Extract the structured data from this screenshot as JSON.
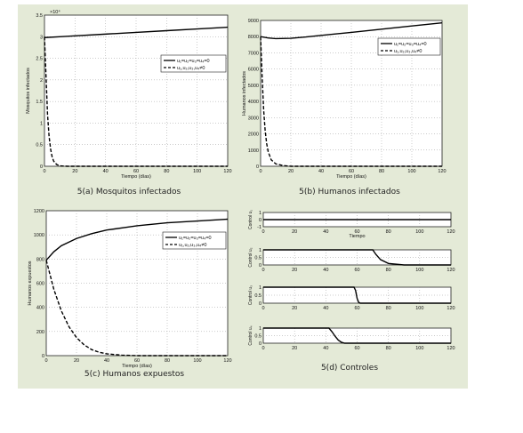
{
  "chart_data": [
    {
      "type": "line",
      "caption": "5(a) Mosquitos infectados",
      "xlabel": "Tiempo (días)",
      "ylabel": "Mosquitos infectados",
      "y_multiplier": "×10⁴",
      "xlim": [
        0,
        120
      ],
      "ylim": [
        0,
        3.5
      ],
      "xticks": [
        0,
        20,
        40,
        60,
        80,
        100,
        120
      ],
      "yticks": [
        0,
        0.5,
        1,
        1.5,
        2,
        2.5,
        3,
        3.5
      ],
      "ytick_labels": [
        "0",
        "0.5",
        "1",
        "1.5",
        "2",
        "2.5",
        "3",
        "3.5"
      ],
      "grid": true,
      "legend_position": "top-right",
      "series": [
        {
          "name": "u₁=u₂=u₃=u₄=0",
          "style": "solid",
          "x": [
            0,
            10,
            20,
            40,
            60,
            80,
            100,
            120
          ],
          "y": [
            2.98,
            3.0,
            3.02,
            3.06,
            3.1,
            3.14,
            3.18,
            3.22
          ]
        },
        {
          "name": "u₁,u₂,u₃,u₄≠0",
          "style": "dashed",
          "x": [
            0,
            1,
            2,
            3,
            4,
            5,
            6,
            8,
            10,
            15,
            120
          ],
          "y": [
            3.0,
            2.1,
            1.2,
            0.7,
            0.4,
            0.22,
            0.12,
            0.04,
            0.01,
            0,
            0
          ]
        }
      ]
    },
    {
      "type": "line",
      "caption": "5(b) Humanos infectados",
      "xlabel": "Tiempo (días)",
      "ylabel": "Humanos infectados",
      "xlim": [
        0,
        120
      ],
      "ylim": [
        0,
        9000
      ],
      "xticks": [
        0,
        20,
        40,
        60,
        80,
        100,
        120
      ],
      "yticks": [
        0,
        1000,
        2000,
        3000,
        4000,
        5000,
        6000,
        7000,
        8000,
        9000
      ],
      "ytick_labels": [
        "0",
        "1000",
        "2000",
        "3000",
        "4000",
        "5000",
        "6000",
        "7000",
        "8000",
        "9000"
      ],
      "grid": true,
      "legend_position": "top-right",
      "series": [
        {
          "name": "u₁=u₂=u₃=u₄=0",
          "style": "solid",
          "x": [
            0,
            5,
            10,
            20,
            30,
            40,
            60,
            80,
            100,
            120
          ],
          "y": [
            8000,
            7920,
            7880,
            7900,
            7980,
            8080,
            8260,
            8460,
            8660,
            8850
          ]
        },
        {
          "name": "u₁,u₂,u₃,u₄≠0",
          "style": "dashed",
          "x": [
            0,
            1,
            2,
            3,
            4,
            5,
            7,
            10,
            15,
            20,
            120
          ],
          "y": [
            8000,
            5500,
            3500,
            2200,
            1400,
            900,
            400,
            150,
            40,
            0,
            0
          ]
        }
      ]
    },
    {
      "type": "line",
      "caption": "5(c) Humanos expuestos",
      "xlabel": "Tiempo (días)",
      "ylabel": "Humanos expuestos",
      "xlim": [
        0,
        120
      ],
      "ylim": [
        0,
        1200
      ],
      "xticks": [
        0,
        20,
        40,
        60,
        80,
        100,
        120
      ],
      "yticks": [
        0,
        200,
        400,
        600,
        800,
        1000,
        1200
      ],
      "ytick_labels": [
        "0",
        "200",
        "400",
        "600",
        "800",
        "1000",
        "1200"
      ],
      "grid": true,
      "legend_position": "top-right",
      "series": [
        {
          "name": "u₁=u₂=u₃=u₄=0",
          "style": "solid",
          "x": [
            0,
            5,
            10,
            20,
            30,
            40,
            60,
            80,
            100,
            120
          ],
          "y": [
            790,
            860,
            910,
            970,
            1010,
            1040,
            1075,
            1100,
            1115,
            1130
          ]
        },
        {
          "name": "u₁,u₂,u₃,u₄≠0",
          "style": "dashed",
          "x": [
            0,
            5,
            10,
            15,
            20,
            25,
            30,
            35,
            40,
            50,
            60,
            120
          ],
          "y": [
            790,
            550,
            370,
            240,
            150,
            90,
            50,
            28,
            15,
            4,
            0,
            0
          ]
        }
      ]
    },
    {
      "type": "line",
      "caption": "5(d) Controles",
      "xlabel": "Tiempo",
      "xlim": [
        0,
        120
      ],
      "xticks": [
        0,
        20,
        40,
        60,
        80,
        100,
        120
      ],
      "grid": true,
      "panels": [
        {
          "ylabel": "Control u₁",
          "ylim": [
            -1,
            1
          ],
          "yticks": [
            -1,
            0,
            1
          ],
          "ytick_labels": [
            "-1",
            "0",
            "1"
          ],
          "x": [
            0,
            120
          ],
          "y": [
            0,
            0
          ]
        },
        {
          "ylabel": "Control u₂",
          "ylim": [
            0,
            1
          ],
          "yticks": [
            0,
            0.5,
            1
          ],
          "ytick_labels": [
            "0",
            "0.5",
            "1"
          ],
          "x": [
            0,
            70,
            72,
            75,
            80,
            90,
            120
          ],
          "y": [
            1,
            1,
            0.7,
            0.35,
            0.1,
            0,
            0
          ]
        },
        {
          "ylabel": "Control u₃",
          "ylim": [
            0,
            1
          ],
          "yticks": [
            0,
            0.5,
            1
          ],
          "ytick_labels": [
            "0",
            "0.5",
            "1"
          ],
          "x": [
            0,
            58,
            59,
            60,
            61,
            62,
            120
          ],
          "y": [
            1,
            1,
            0.8,
            0.3,
            0.05,
            0,
            0
          ]
        },
        {
          "ylabel": "Control u₄",
          "ylim": [
            0,
            1
          ],
          "yticks": [
            0,
            0.5,
            1
          ],
          "ytick_labels": [
            "0",
            "0.5",
            "1"
          ],
          "x": [
            0,
            42,
            44,
            46,
            48,
            50,
            52,
            120
          ],
          "y": [
            1,
            1,
            0.75,
            0.45,
            0.2,
            0.06,
            0,
            0
          ]
        }
      ]
    }
  ]
}
